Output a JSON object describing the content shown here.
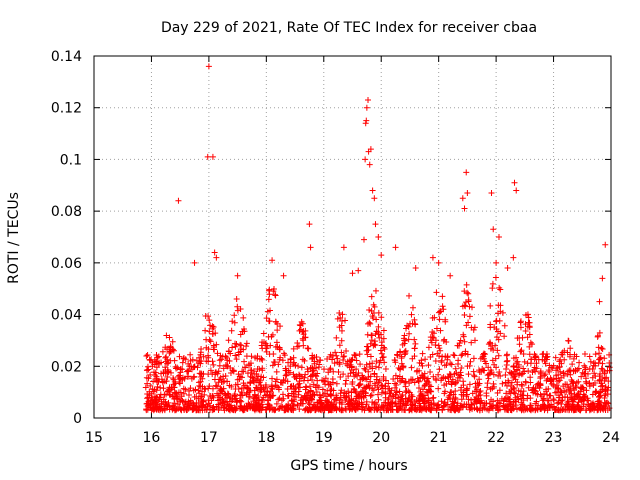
{
  "chart_data": {
    "type": "scatter",
    "title": "Day 229 of 2021, Rate Of TEC Index for receiver cbaa",
    "xlabel": "GPS time / hours",
    "ylabel": "ROTI / TECUs",
    "xlim": [
      15,
      24
    ],
    "ylim": [
      0,
      0.14
    ],
    "xticks": [
      "15",
      "16",
      "17",
      "18",
      "19",
      "20",
      "21",
      "22",
      "23",
      "24"
    ],
    "yticks": [
      "0",
      "0.02",
      "0.04",
      "0.06",
      "0.08",
      "0.1",
      "0.12",
      "0.14"
    ],
    "grid": true,
    "marker": "+",
    "color": "#ff0000",
    "series": [
      {
        "name": "ROTI",
        "x": [
          16.47,
          16.98,
          17.0,
          17.07,
          17.1,
          17.13,
          16.75,
          18.75,
          18.77,
          19.35,
          19.7,
          19.72,
          19.73,
          19.74,
          19.75,
          19.77,
          19.78,
          19.8,
          19.82,
          19.85,
          19.88,
          19.9,
          19.95,
          20.0,
          20.25,
          21.42,
          21.45,
          21.48,
          21.5,
          21.92,
          21.95,
          22.05,
          22.32,
          22.35,
          23.9,
          23.85,
          23.8,
          22.3,
          18.1,
          18.3,
          20.6,
          21.0,
          21.2,
          22.0,
          22.2,
          19.5,
          19.6,
          17.5,
          20.9
        ],
        "y": [
          0.084,
          0.101,
          0.136,
          0.101,
          0.064,
          0.062,
          0.06,
          0.075,
          0.066,
          0.066,
          0.069,
          0.1,
          0.114,
          0.115,
          0.12,
          0.123,
          0.103,
          0.098,
          0.104,
          0.088,
          0.085,
          0.075,
          0.07,
          0.063,
          0.066,
          0.085,
          0.081,
          0.095,
          0.087,
          0.087,
          0.073,
          0.07,
          0.091,
          0.088,
          0.067,
          0.054,
          0.045,
          0.062,
          0.061,
          0.055,
          0.058,
          0.06,
          0.055,
          0.06,
          0.058,
          0.056,
          0.057,
          0.055,
          0.062
        ]
      }
    ]
  }
}
